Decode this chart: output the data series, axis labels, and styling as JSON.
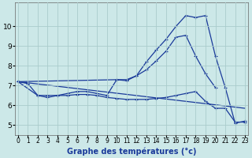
{
  "xlabel": "Graphe des températures (°c)",
  "background_color": "#cce8e8",
  "grid_color": "#aacccc",
  "line_color": "#1a3a9a",
  "x_values": [
    0,
    1,
    2,
    3,
    4,
    5,
    6,
    7,
    8,
    9,
    10,
    11,
    12,
    13,
    14,
    15,
    16,
    17,
    18,
    19,
    20,
    21,
    22,
    23
  ],
  "series1": [
    7.2,
    7.1,
    6.5,
    6.5,
    6.5,
    6.6,
    6.7,
    6.7,
    6.6,
    6.5,
    7.3,
    7.25,
    7.5,
    8.2,
    8.8,
    9.35,
    10.0,
    10.55,
    10.45,
    10.55,
    8.5,
    6.9,
    5.1,
    5.2
  ],
  "series2_x": [
    0,
    10,
    11,
    12,
    13,
    14,
    15,
    16,
    17,
    18,
    19,
    20
  ],
  "series2_y": [
    7.2,
    7.3,
    7.3,
    7.5,
    7.8,
    8.25,
    8.75,
    9.45,
    9.55,
    8.5,
    7.6,
    6.9
  ],
  "series3_x": [
    0,
    23
  ],
  "series3_y": [
    7.2,
    5.85
  ],
  "series4_x": [
    0,
    2,
    3,
    4,
    5,
    6,
    7,
    8,
    9,
    10,
    11,
    12,
    13,
    14,
    15,
    16,
    17,
    18,
    19,
    20,
    21,
    22,
    23
  ],
  "series4_y": [
    7.2,
    6.5,
    6.4,
    6.5,
    6.5,
    6.55,
    6.55,
    6.5,
    6.4,
    6.35,
    6.3,
    6.3,
    6.3,
    6.35,
    6.4,
    6.5,
    6.6,
    6.7,
    6.2,
    5.85,
    5.85,
    5.15,
    5.15
  ],
  "ylim": [
    4.5,
    11.2
  ],
  "xlim": [
    -0.3,
    23.3
  ],
  "yticks": [
    5,
    6,
    7,
    8,
    9,
    10
  ],
  "xticks": [
    0,
    1,
    2,
    3,
    4,
    5,
    6,
    7,
    8,
    9,
    10,
    11,
    12,
    13,
    14,
    15,
    16,
    17,
    18,
    19,
    20,
    21,
    22,
    23
  ],
  "xlabel_fontsize": 7,
  "ytick_fontsize": 6.5,
  "xtick_fontsize": 5.5
}
